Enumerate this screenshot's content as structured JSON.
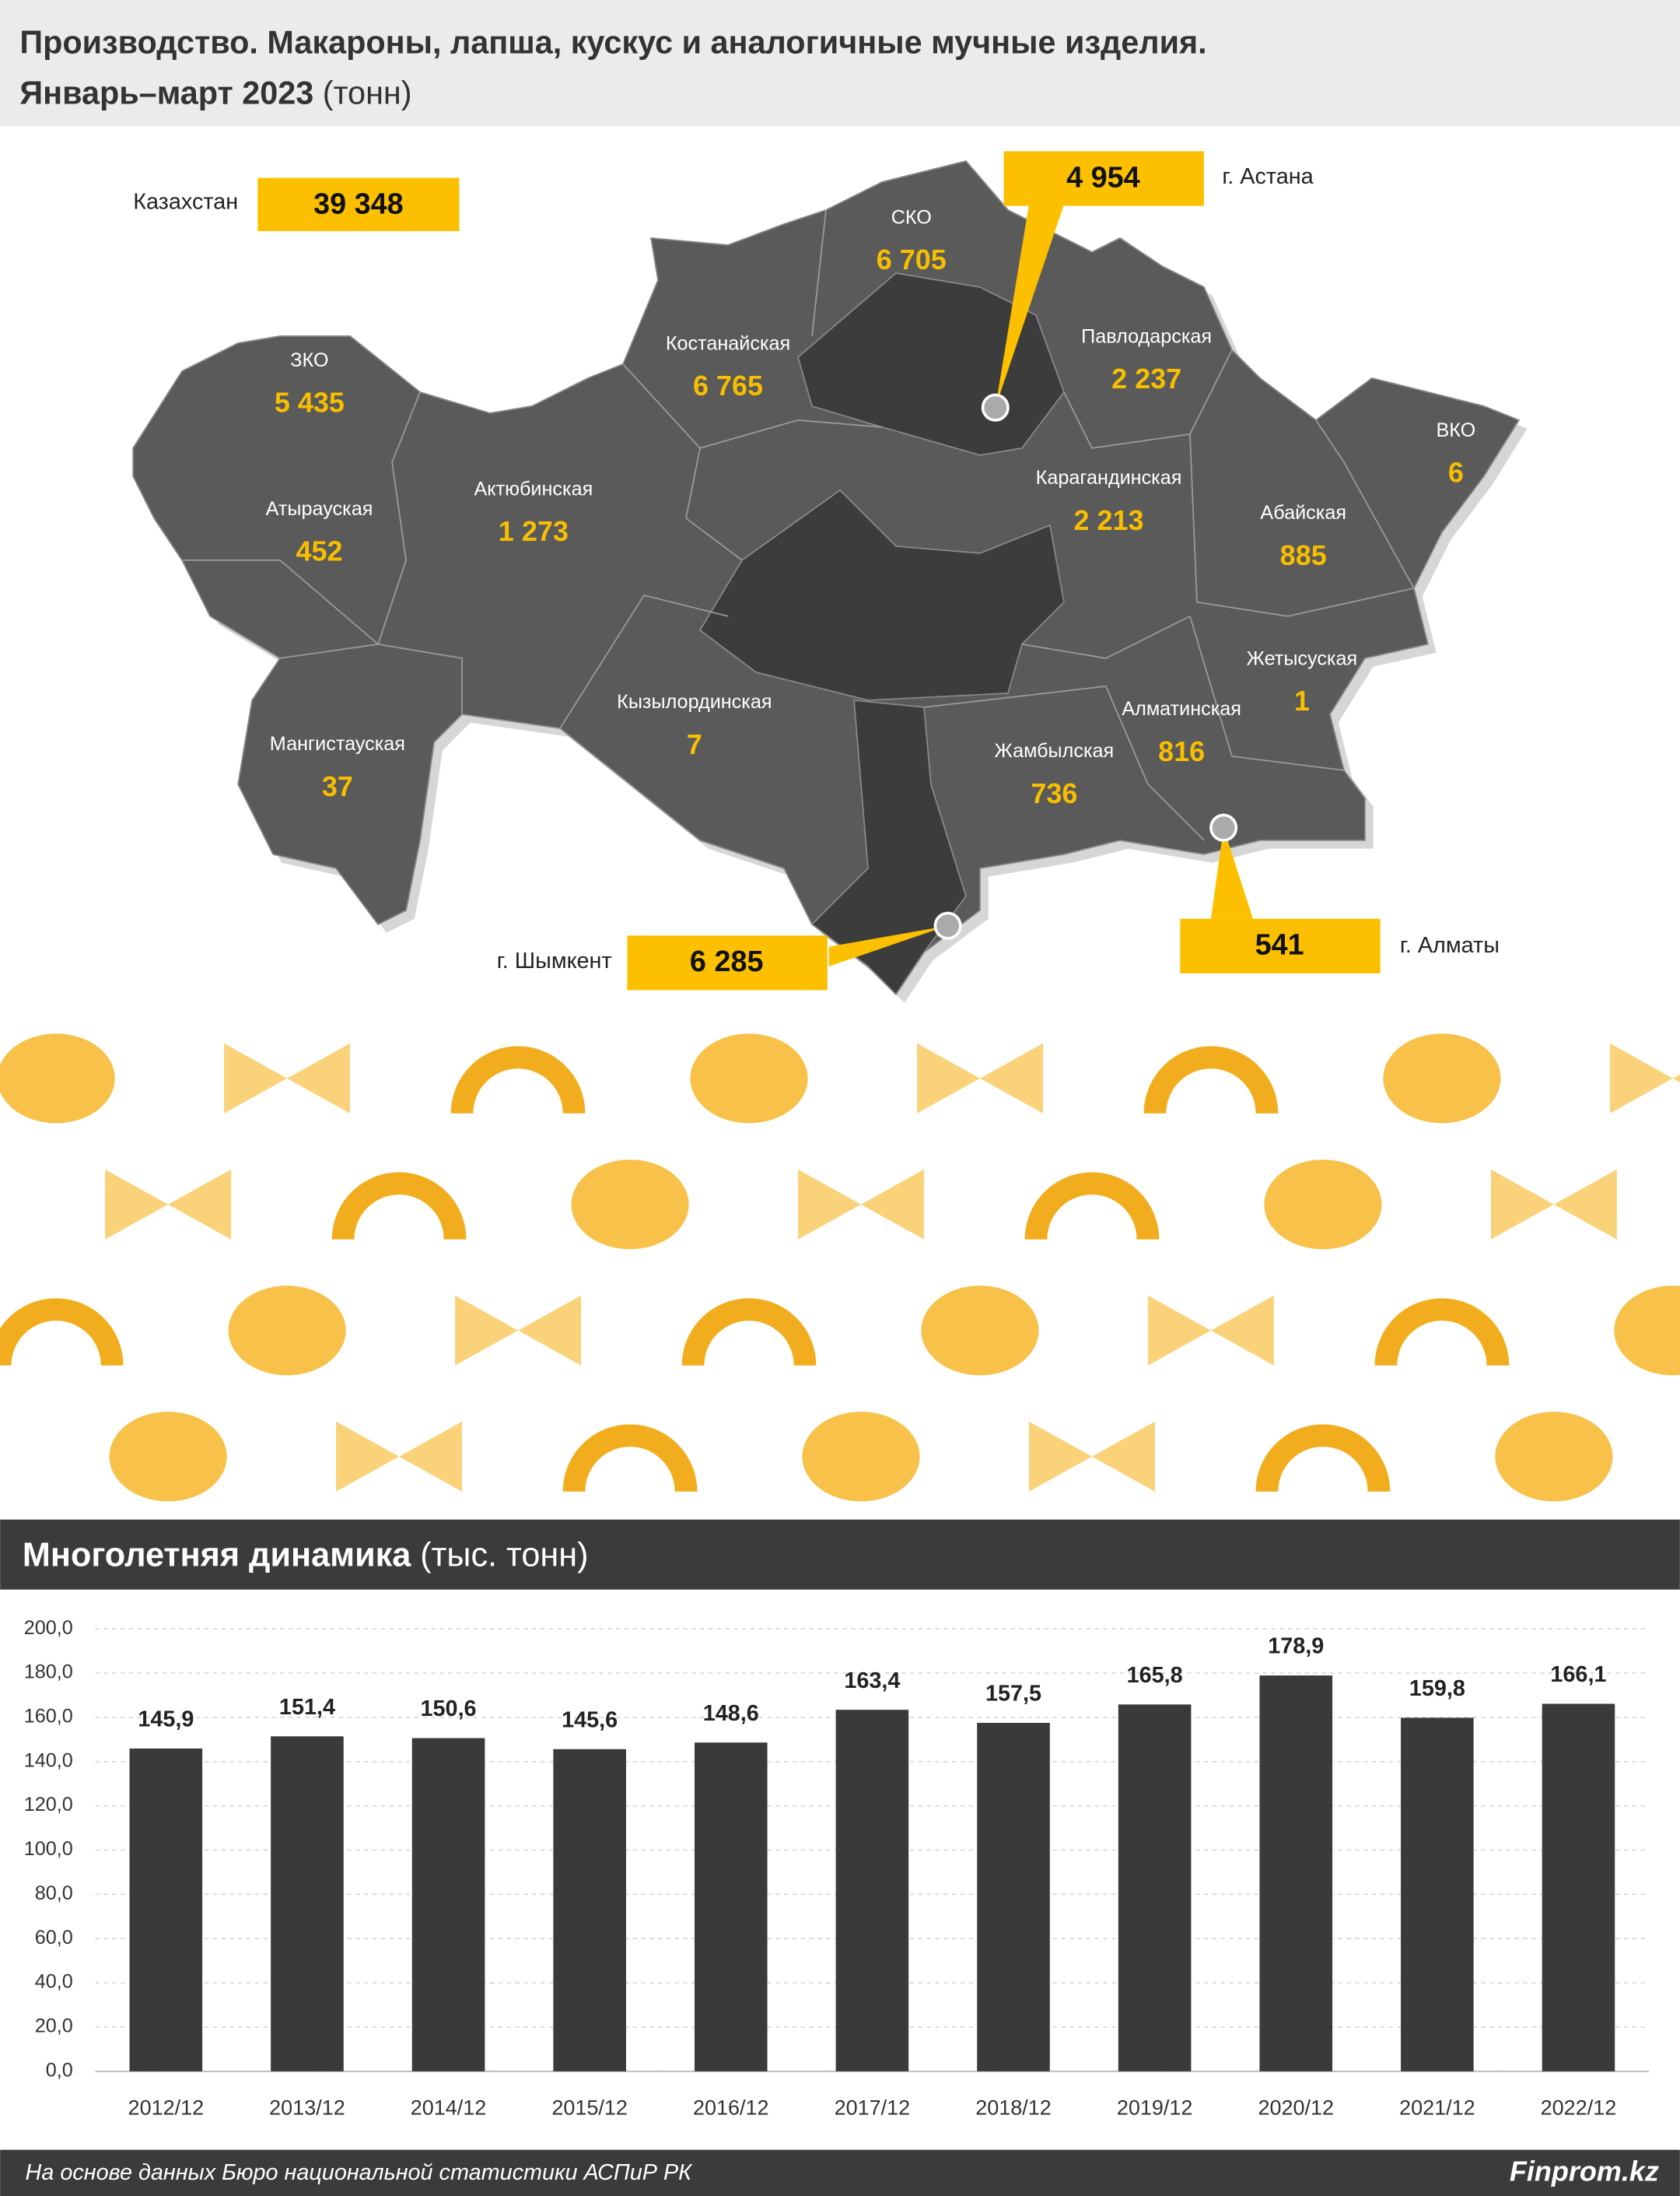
{
  "header": {
    "title": "Производство. Макароны, лапша, кускус и аналогичные мучные изделия.",
    "subtitle": "Январь–март 2023",
    "unit": "(тонн)"
  },
  "map": {
    "total": {
      "name": "Казахстан",
      "value": "39 348"
    },
    "regions": [
      {
        "name": "ЗКО",
        "value": "5 435"
      },
      {
        "name": "Атырауская",
        "value": "452"
      },
      {
        "name": "Актюбинская",
        "value": "1 273"
      },
      {
        "name": "Мангистауская",
        "value": "37"
      },
      {
        "name": "Костанайская",
        "value": "6 765"
      },
      {
        "name": "СКО",
        "value": "6 705"
      },
      {
        "name": "Павлодарская",
        "value": "2 237"
      },
      {
        "name": "ВКО",
        "value": "6"
      },
      {
        "name": "Карагандинская",
        "value": "2 213"
      },
      {
        "name": "Абайская",
        "value": "885"
      },
      {
        "name": "Жетысуская",
        "value": "1"
      },
      {
        "name": "Алматинская",
        "value": "816"
      },
      {
        "name": "Жамбылская",
        "value": "736"
      },
      {
        "name": "Кызылординская",
        "value": "7"
      }
    ],
    "cities": [
      {
        "name": "г. Астана",
        "value": "4 954"
      },
      {
        "name": "г. Шымкент",
        "value": "6 285"
      },
      {
        "name": "г. Алматы",
        "value": "541"
      }
    ]
  },
  "chart_data": {
    "type": "bar",
    "title": "Многолетняя динамика",
    "subtitle": "(тыс. тонн)",
    "categories": [
      "2012/12",
      "2013/12",
      "2014/12",
      "2015/12",
      "2016/12",
      "2017/12",
      "2018/12",
      "2019/12",
      "2020/12",
      "2021/12",
      "2022/12"
    ],
    "values": [
      145.9,
      151.4,
      150.6,
      145.6,
      148.6,
      163.4,
      157.5,
      165.8,
      178.9,
      159.8,
      166.1
    ],
    "value_labels": [
      "145,9",
      "151,4",
      "150,6",
      "145,6",
      "148,6",
      "163,4",
      "157,5",
      "165,8",
      "178,9",
      "159,8",
      "166,1"
    ],
    "color": "#3a3a3a",
    "ylim": [
      0,
      200
    ],
    "yticks": [
      {
        "value": 0,
        "label": "0,0"
      },
      {
        "value": 20,
        "label": "20,0"
      },
      {
        "value": 40,
        "label": "40,0"
      },
      {
        "value": 60,
        "label": "60,0"
      },
      {
        "value": 80,
        "label": "80,0"
      },
      {
        "value": 100,
        "label": "100,0"
      },
      {
        "value": 120,
        "label": "120,0"
      },
      {
        "value": 140,
        "label": "140,0"
      },
      {
        "value": 160,
        "label": "160,0"
      },
      {
        "value": 180,
        "label": "180,0"
      },
      {
        "value": 200,
        "label": "200,0"
      }
    ],
    "grid": true
  },
  "footer": {
    "source": "На основе данных Бюро национальной статистики АСПиР РК",
    "brand": "Finprom.kz"
  }
}
